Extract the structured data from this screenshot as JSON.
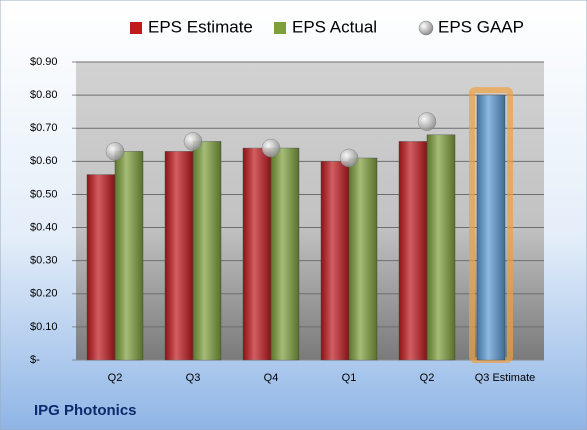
{
  "chart_data": {
    "type": "bar",
    "title": "IPG Photonics",
    "categories": [
      "Q2",
      "Q3",
      "Q4",
      "Q1",
      "Q2",
      "Q3 Estimate"
    ],
    "series": [
      {
        "name": "EPS Estimate",
        "color": "#c0191e",
        "values": [
          0.56,
          0.63,
          0.64,
          0.6,
          0.66,
          0.8
        ],
        "point_colors": [
          "#c0191e",
          "#c0191e",
          "#c0191e",
          "#c0191e",
          "#c0191e",
          "#5b9bd5"
        ]
      },
      {
        "name": "EPS Actual",
        "color": "#7ea03c",
        "values": [
          0.63,
          0.66,
          0.64,
          0.61,
          0.68,
          null
        ]
      },
      {
        "name": "EPS GAAP",
        "color": "#a6a6a6",
        "marker": "circle",
        "values": [
          0.63,
          0.66,
          0.64,
          0.61,
          0.72,
          null
        ]
      }
    ],
    "ylim": [
      0,
      0.9
    ],
    "yticks": [
      {
        "value": 0,
        "label": "$-"
      },
      {
        "value": 0.1,
        "label": "$0.10"
      },
      {
        "value": 0.2,
        "label": "$0.20"
      },
      {
        "value": 0.3,
        "label": "$0.30"
      },
      {
        "value": 0.4,
        "label": "$0.40"
      },
      {
        "value": 0.5,
        "label": "$0.50"
      },
      {
        "value": 0.6,
        "label": "$0.60"
      },
      {
        "value": 0.7,
        "label": "$0.70"
      },
      {
        "value": 0.8,
        "label": "$0.80"
      },
      {
        "value": 0.9,
        "label": "$0.90"
      }
    ],
    "grid": true,
    "legend": "top"
  }
}
